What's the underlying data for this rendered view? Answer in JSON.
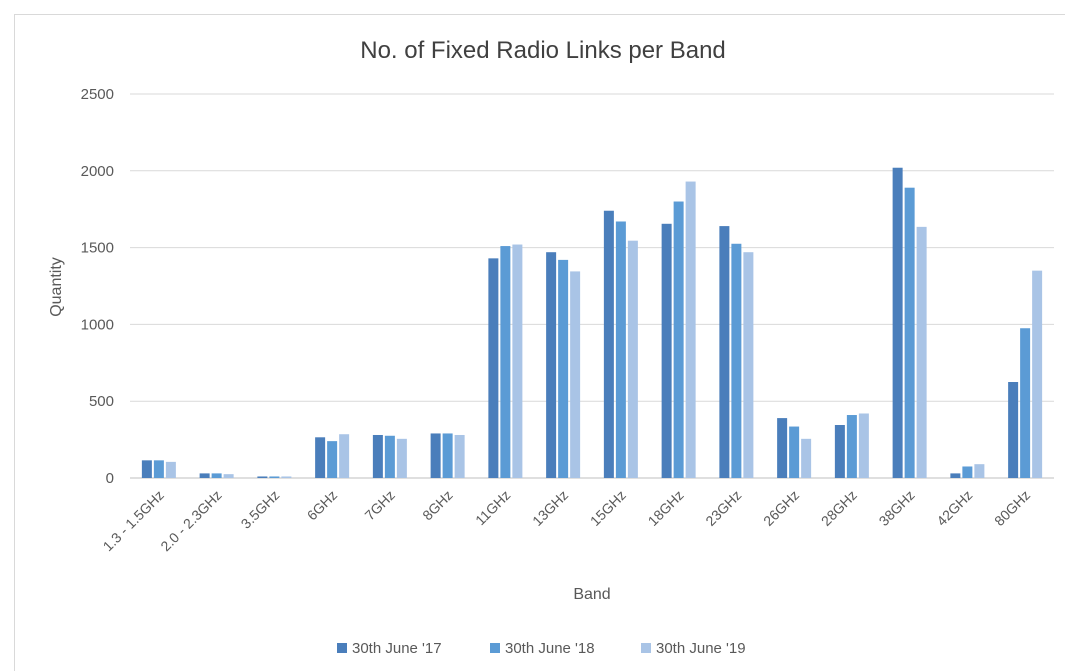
{
  "chart_data": {
    "type": "bar",
    "title": "No. of Fixed Radio Links per Band",
    "xlabel": "Band",
    "ylabel": "Quantity",
    "ylim": [
      0,
      2500
    ],
    "yticks": [
      "0",
      "500",
      "1000",
      "1500",
      "2000",
      "2500"
    ],
    "grid": true,
    "legend_position": "bottom",
    "categories": [
      "1.3 - 1.5GHz",
      "2.0 - 2.3GHz",
      "3.5GHz",
      "6GHz",
      "7GHz",
      "8GHz",
      "11GHz",
      "13GHz",
      "15GHz",
      "18GHz",
      "23GHz",
      "26GHz",
      "28GHz",
      "38GHz",
      "42GHz",
      "80GHz"
    ],
    "series": [
      {
        "name": "30th June '17",
        "color": "#4a7ebb",
        "values": [
          115,
          30,
          10,
          265,
          280,
          290,
          1430,
          1470,
          1740,
          1655,
          1640,
          390,
          345,
          2020,
          30,
          625
        ]
      },
      {
        "name": "30th June '18",
        "color": "#5b9bd5",
        "values": [
          115,
          30,
          10,
          240,
          275,
          290,
          1510,
          1420,
          1670,
          1800,
          1525,
          335,
          410,
          1890,
          75,
          975
        ]
      },
      {
        "name": "30th June '19",
        "color": "#a9c4e6",
        "values": [
          105,
          25,
          10,
          285,
          255,
          280,
          1520,
          1345,
          1545,
          1930,
          1470,
          255,
          420,
          1635,
          90,
          1350
        ]
      }
    ]
  }
}
